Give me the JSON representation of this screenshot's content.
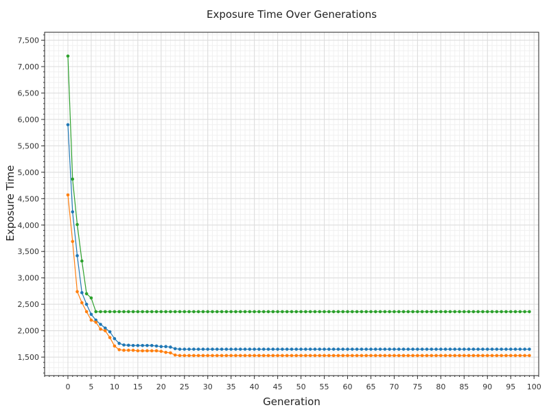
{
  "chart_data": {
    "type": "line",
    "title": "Exposure Time Over Generations",
    "xlabel": "Generation",
    "ylabel": "Exposure Time",
    "xlim": [
      -5,
      101
    ],
    "ylim": [
      1150,
      7650
    ],
    "x_ticks": [
      0,
      5,
      10,
      15,
      20,
      25,
      30,
      35,
      40,
      45,
      50,
      55,
      60,
      65,
      70,
      75,
      80,
      85,
      90,
      95,
      100
    ],
    "x_tick_labels": [
      "0",
      "5",
      "10",
      "15",
      "20",
      "25",
      "30",
      "35",
      "40",
      "45",
      "50",
      "55",
      "60",
      "65",
      "70",
      "75",
      "80",
      "85",
      "90",
      "95",
      "100"
    ],
    "y_ticks": [
      1500,
      2000,
      2500,
      3000,
      3500,
      4000,
      4500,
      5000,
      5500,
      6000,
      6500,
      7000,
      7500
    ],
    "y_tick_labels": [
      "1,500",
      "2,000",
      "2,500",
      "3,000",
      "3,500",
      "4,000",
      "4,500",
      "5,000",
      "5,500",
      "6,000",
      "6,500",
      "7,000",
      "7,500"
    ],
    "grid": true,
    "legend": "none",
    "x": [
      0,
      1,
      2,
      3,
      4,
      5,
      6,
      7,
      8,
      9,
      10,
      11,
      12,
      13,
      14,
      15,
      16,
      17,
      18,
      19,
      20,
      21,
      22,
      23,
      24,
      25,
      26,
      27,
      28,
      29,
      30,
      31,
      32,
      33,
      34,
      35,
      36,
      37,
      38,
      39,
      40,
      41,
      42,
      43,
      44,
      45,
      46,
      47,
      48,
      49,
      50,
      51,
      52,
      53,
      54,
      55,
      56,
      57,
      58,
      59,
      60,
      61,
      62,
      63,
      64,
      65,
      66,
      67,
      68,
      69,
      70,
      71,
      72,
      73,
      74,
      75,
      76,
      77,
      78,
      79,
      80,
      81,
      82,
      83,
      84,
      85,
      86,
      87,
      88,
      89,
      90,
      91,
      92,
      93,
      94,
      95,
      96,
      97,
      98,
      99
    ],
    "series": [
      {
        "color": "#1f77b4",
        "values": [
          5900,
          4250,
          3420,
          2720,
          2500,
          2310,
          2200,
          2120,
          2050,
          1980,
          1850,
          1760,
          1730,
          1725,
          1720,
          1720,
          1720,
          1720,
          1720,
          1710,
          1700,
          1700,
          1690,
          1660,
          1650,
          1650,
          1650,
          1650,
          1650,
          1650,
          1650,
          1650,
          1650,
          1650,
          1650,
          1650,
          1650,
          1650,
          1650,
          1650,
          1650,
          1650,
          1650,
          1650,
          1650,
          1650,
          1650,
          1650,
          1650,
          1650,
          1650,
          1650,
          1650,
          1650,
          1650,
          1650,
          1650,
          1650,
          1650,
          1650,
          1650,
          1650,
          1650,
          1650,
          1650,
          1650,
          1650,
          1650,
          1650,
          1650,
          1650,
          1650,
          1650,
          1650,
          1650,
          1650,
          1650,
          1650,
          1650,
          1650,
          1650,
          1650,
          1650,
          1650,
          1650,
          1650,
          1650,
          1650,
          1650,
          1650,
          1650,
          1650,
          1650,
          1650,
          1650,
          1650,
          1650,
          1650,
          1650,
          1650
        ]
      },
      {
        "color": "#ff7f0e",
        "values": [
          4570,
          3690,
          2740,
          2530,
          2360,
          2200,
          2160,
          2030,
          2000,
          1870,
          1710,
          1640,
          1630,
          1630,
          1630,
          1620,
          1620,
          1620,
          1620,
          1620,
          1610,
          1590,
          1580,
          1540,
          1530,
          1530,
          1530,
          1530,
          1530,
          1530,
          1530,
          1530,
          1530,
          1530,
          1530,
          1530,
          1530,
          1530,
          1530,
          1530,
          1530,
          1530,
          1530,
          1530,
          1530,
          1530,
          1530,
          1530,
          1530,
          1530,
          1530,
          1530,
          1530,
          1530,
          1530,
          1530,
          1530,
          1530,
          1530,
          1530,
          1530,
          1530,
          1530,
          1530,
          1530,
          1530,
          1530,
          1530,
          1530,
          1530,
          1530,
          1530,
          1530,
          1530,
          1530,
          1530,
          1530,
          1530,
          1530,
          1530,
          1530,
          1530,
          1530,
          1530,
          1530,
          1530,
          1530,
          1530,
          1530,
          1530,
          1530,
          1530,
          1530,
          1530,
          1530,
          1530,
          1530,
          1530,
          1530,
          1530
        ]
      },
      {
        "color": "#2ca02c",
        "values": [
          7200,
          4870,
          4010,
          3320,
          2700,
          2620,
          2360,
          2360,
          2360,
          2360,
          2360,
          2360,
          2360,
          2360,
          2360,
          2360,
          2360,
          2360,
          2360,
          2360,
          2360,
          2360,
          2360,
          2360,
          2360,
          2360,
          2360,
          2360,
          2360,
          2360,
          2360,
          2360,
          2360,
          2360,
          2360,
          2360,
          2360,
          2360,
          2360,
          2360,
          2360,
          2360,
          2360,
          2360,
          2360,
          2360,
          2360,
          2360,
          2360,
          2360,
          2360,
          2360,
          2360,
          2360,
          2360,
          2360,
          2360,
          2360,
          2360,
          2360,
          2360,
          2360,
          2360,
          2360,
          2360,
          2360,
          2360,
          2360,
          2360,
          2360,
          2360,
          2360,
          2360,
          2360,
          2360,
          2360,
          2360,
          2360,
          2360,
          2360,
          2360,
          2360,
          2360,
          2360,
          2360,
          2360,
          2360,
          2360,
          2360,
          2360,
          2360,
          2360,
          2360,
          2360,
          2360,
          2360,
          2360,
          2360,
          2360,
          2360
        ]
      }
    ]
  }
}
